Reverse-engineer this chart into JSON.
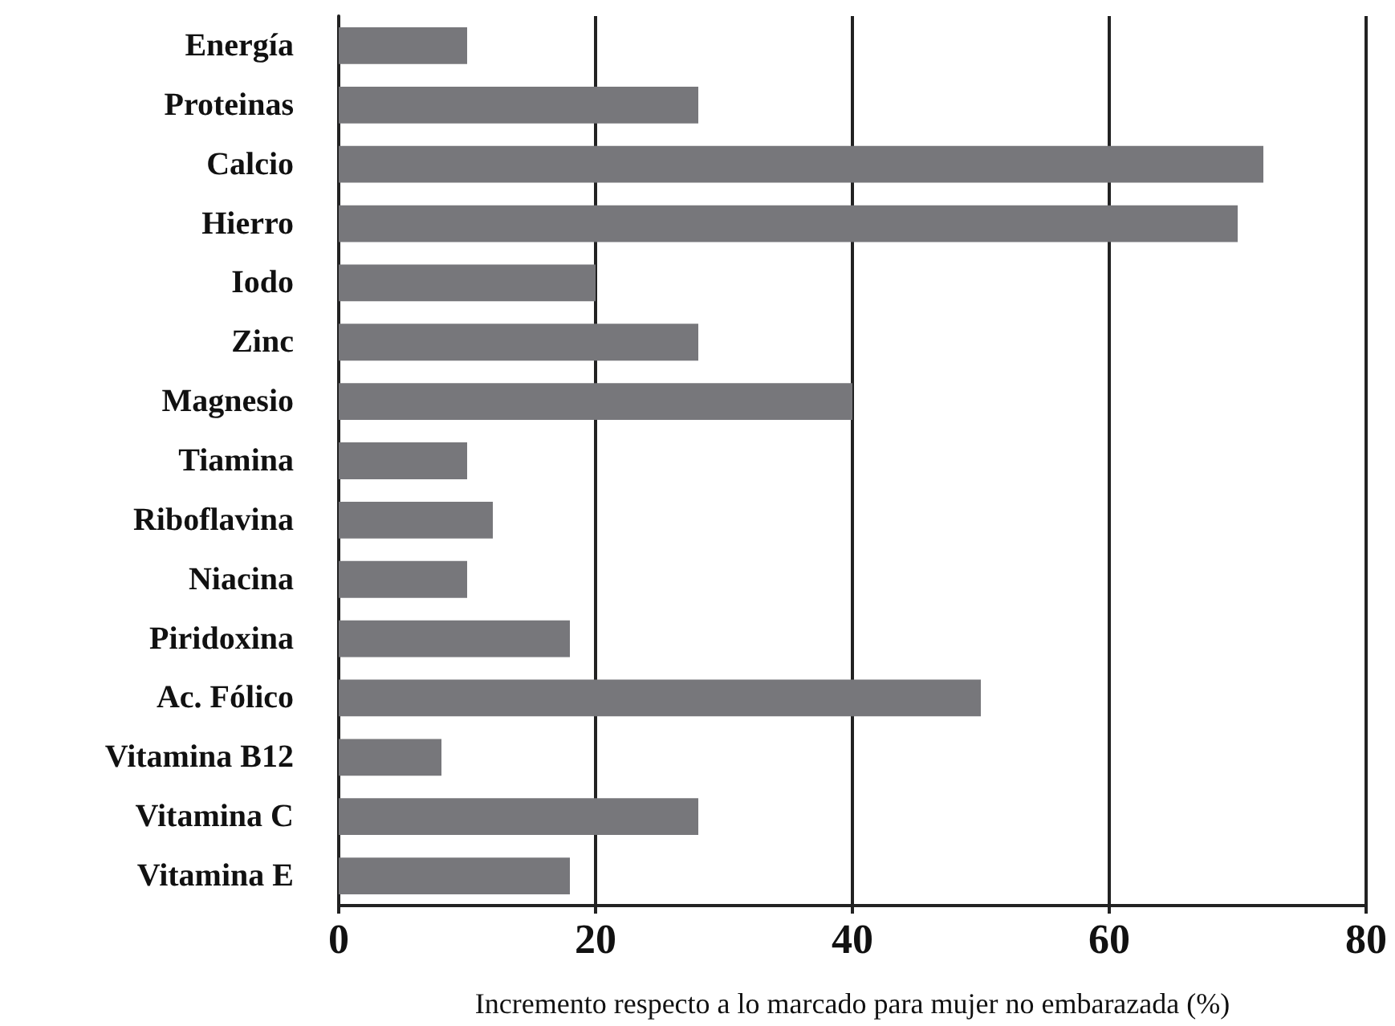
{
  "chart_data": {
    "type": "bar",
    "orientation": "horizontal",
    "xlabel": "Incremento respecto a lo marcado para mujer no embarazada (%)",
    "categories": [
      "Energía",
      "Proteinas",
      "Calcio",
      "Hierro",
      "Iodo",
      "Zinc",
      "Magnesio",
      "Tiamina",
      "Riboflavina",
      "Niacina",
      "Piridoxina",
      "Ac. Fólico",
      "Vitamina B12",
      "Vitamina C",
      "Vitamina E"
    ],
    "values": [
      10,
      28,
      72,
      70,
      20,
      28,
      40,
      10,
      12,
      10,
      18,
      50,
      8,
      28,
      18
    ],
    "color": "#77777b",
    "xlim": [
      0,
      80
    ],
    "xticks": [
      0,
      20,
      40,
      60,
      80
    ],
    "grid": "x"
  }
}
